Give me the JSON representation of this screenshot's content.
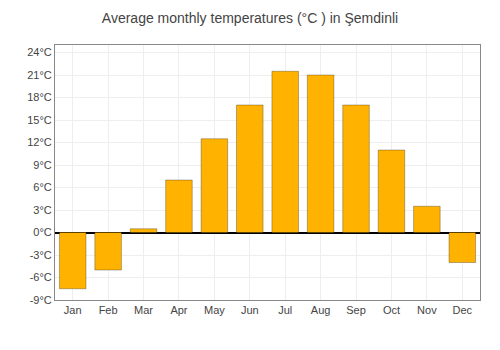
{
  "chart_data": {
    "type": "bar",
    "title": "Average monthly temperatures (°C ) in Şemdinli",
    "categories": [
      "Jan",
      "Feb",
      "Mar",
      "Apr",
      "May",
      "Jun",
      "Jul",
      "Aug",
      "Sep",
      "Oct",
      "Nov",
      "Dec"
    ],
    "values": [
      -7.5,
      -5.0,
      0.5,
      7.0,
      12.5,
      17.0,
      21.5,
      21.0,
      17.0,
      11.0,
      3.5,
      -4.0
    ],
    "color": "#FFB300",
    "ylim": [
      -9,
      25
    ],
    "yticks": [
      {
        "value": -9,
        "label": "-9°C"
      },
      {
        "value": -6,
        "label": "-6°C"
      },
      {
        "value": -3,
        "label": "-3°C"
      },
      {
        "value": 0,
        "label": "0°C"
      },
      {
        "value": 3,
        "label": "3°C"
      },
      {
        "value": 6,
        "label": "6°C"
      },
      {
        "value": 9,
        "label": "9°C"
      },
      {
        "value": 12,
        "label": "12°C"
      },
      {
        "value": 15,
        "label": "15°C"
      },
      {
        "value": 18,
        "label": "18°C"
      },
      {
        "value": 21,
        "label": "21°C"
      },
      {
        "value": 24,
        "label": "24°C"
      }
    ],
    "grid": true
  }
}
